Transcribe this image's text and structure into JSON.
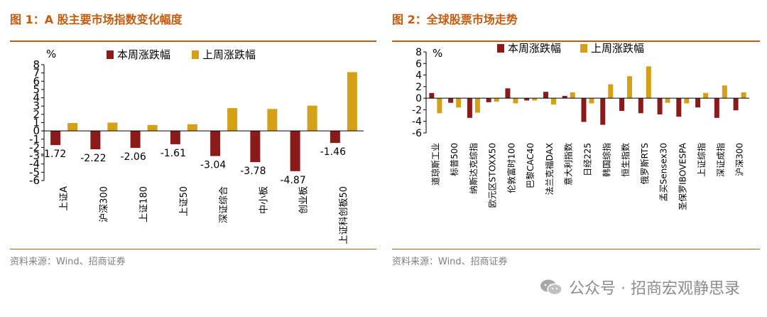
{
  "chart_data": [
    {
      "type": "bar",
      "title": "图 1：A 股主要市场指数变化幅度",
      "ylabel": "%",
      "ylim": [
        -6,
        8
      ],
      "yticks": [
        "8",
        "7",
        "6",
        "5",
        "4",
        "3",
        "2",
        "1",
        "0",
        "-1",
        "-2",
        "-3",
        "-4",
        "-5",
        "-6"
      ],
      "categories": [
        "上证A",
        "沪深300",
        "上证180",
        "上证50",
        "深证综合",
        "中小板",
        "创业板",
        "上证科创板50"
      ],
      "series": [
        {
          "name": "本周涨跌幅",
          "color": "#8b1a1a",
          "values": [
            -1.72,
            -2.22,
            -2.06,
            -1.61,
            -3.04,
            -3.78,
            -4.87,
            -1.46
          ]
        },
        {
          "name": "上周涨跌幅",
          "color": "#d4a017",
          "values": [
            0.95,
            1.0,
            0.72,
            0.8,
            2.75,
            2.65,
            3.05,
            7.1
          ]
        }
      ],
      "data_labels": [
        "-1.72",
        "-2.22",
        "-2.06",
        "-1.61",
        "-3.04",
        "-3.78",
        "-4.87",
        "-1.46"
      ],
      "source": "资料来源：Wind、招商证券"
    },
    {
      "type": "bar",
      "title": "图 2：全球股票市场走势",
      "ylabel": "%",
      "ylim": [
        -6,
        8
      ],
      "yticks": [
        "8",
        "6",
        "4",
        "2",
        "0",
        "-2",
        "-4",
        "-6"
      ],
      "categories": [
        "道琼斯工业",
        "标普500",
        "纳斯达克综指",
        "欧元区STOXX50",
        "伦敦富时100",
        "巴黎CAC40",
        "法兰克福DAX",
        "意大利指数",
        "日经225",
        "韩国综指",
        "恒生指数",
        "俄罗斯RTS",
        "孟买Sensex30",
        "圣保罗IBOVESPA",
        "上证综指",
        "深证成指",
        "沪深300"
      ],
      "series": [
        {
          "name": "本周涨跌幅",
          "color": "#8b1a1a",
          "values": [
            0.9,
            -0.8,
            -3.4,
            -0.7,
            1.7,
            -0.4,
            1.1,
            0.4,
            -4.1,
            -4.6,
            -2.2,
            -2.6,
            -2.8,
            -3.2,
            -1.6,
            -3.4,
            -2.1
          ]
        },
        {
          "name": "上周涨跌幅",
          "color": "#d4a017",
          "values": [
            -2.6,
            -1.6,
            -2.5,
            -0.6,
            -0.9,
            -0.4,
            -1.1,
            1.0,
            -0.9,
            2.4,
            3.8,
            5.5,
            -0.8,
            -0.9,
            0.9,
            2.2,
            1.0
          ]
        }
      ],
      "source": "资料来源：Wind、招商证券"
    }
  ],
  "watermark": "公众号 · 招商宏观静思录"
}
